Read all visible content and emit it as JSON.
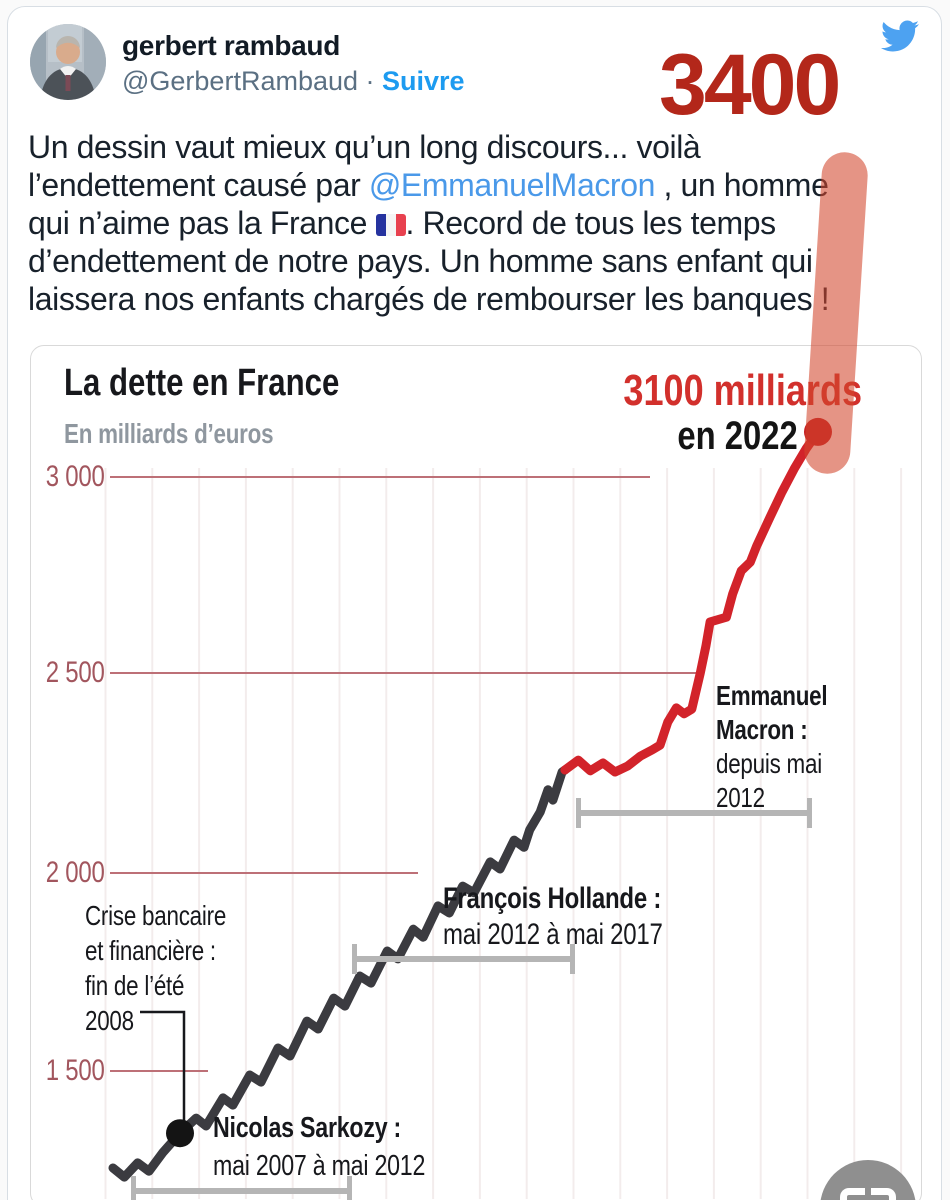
{
  "colors": {
    "overlay_red": "#b3271a",
    "link_blue": "#4a99e9",
    "follow_blue": "#1d9bf0",
    "curve_black": "#3b3b40",
    "curve_red": "#d2232a",
    "axis_red": "#bd7077",
    "bird_blue": "#4da2f1",
    "highlighter": "rgba(210,70,45,0.58)"
  },
  "header": {
    "author": "gerbert rambaud",
    "handle": "@GerbertRambaud",
    "separator": " · ",
    "follow_label": "Suivre"
  },
  "overlay_number": "3400",
  "tweet": {
    "lines": [
      [
        {
          "t": "Un dessin vaut mieux qu’un long discours... voilà"
        }
      ],
      [
        {
          "t": "l’endettement causé par "
        },
        {
          "t": "@EmmanuelMacron",
          "c": "link"
        },
        {
          "t": " , un homme"
        }
      ],
      [
        {
          "t": "qui n’aime pas la France "
        },
        {
          "t": "🇫🇷",
          "c": "flag"
        },
        {
          "t": ". Record de tous les temps"
        }
      ],
      [
        {
          "t": "d’endettement de notre pays. Un homme sans enfant qui"
        }
      ],
      [
        {
          "t": "laissera nos enfants chargés de rembourser les banques !"
        }
      ]
    ]
  },
  "chart": {
    "title": "La dette en France",
    "subtitle": "En milliards d’euros",
    "callout_value": "3100 milliards",
    "callout_year": "en 2022",
    "y_ticks": [
      "3 000",
      "2 500",
      "2 000",
      "1 500"
    ],
    "annotations": {
      "crisis_1": "Crise bancaire",
      "crisis_2": "et financière :",
      "crisis_3": "fin de l’été",
      "crisis_4": "2008",
      "sarkozy_name": "Nicolas Sarkozy :",
      "sarkozy_period": "mai 2007 à mai 2012",
      "hollande_name": "François Hollande :",
      "hollande_period": "mai 2012 à mai 2017",
      "macron_name_1": "Emmanuel",
      "macron_name_2": "Macron :",
      "macron_period_1": "depuis mai",
      "macron_period_2": "2012"
    }
  },
  "chart_data": {
    "type": "line",
    "title": "La dette en France",
    "ylabel": "En milliards d’euros",
    "ylim": [
      1150,
      3200
    ],
    "yticks": [
      3000,
      2500,
      2000,
      1500
    ],
    "x_axis": "temps, mai 2007 → 2022 (fraction t de 0 à 1)",
    "grid": "faint vertical lines",
    "series": [
      {
        "name": "dette avant l’ère rouge (tracé gris-noir)",
        "color": "#3b3b40",
        "points": [
          [
            0.0,
            1255
          ],
          [
            0.016,
            1232
          ],
          [
            0.035,
            1268
          ],
          [
            0.051,
            1247
          ],
          [
            0.071,
            1295
          ],
          [
            0.095,
            1343
          ],
          [
            0.118,
            1381
          ],
          [
            0.132,
            1361
          ],
          [
            0.156,
            1432
          ],
          [
            0.17,
            1414
          ],
          [
            0.194,
            1490
          ],
          [
            0.21,
            1472
          ],
          [
            0.234,
            1558
          ],
          [
            0.251,
            1538
          ],
          [
            0.275,
            1626
          ],
          [
            0.291,
            1606
          ],
          [
            0.313,
            1684
          ],
          [
            0.329,
            1664
          ],
          [
            0.35,
            1740
          ],
          [
            0.366,
            1722
          ],
          [
            0.389,
            1803
          ],
          [
            0.404,
            1783
          ],
          [
            0.426,
            1858
          ],
          [
            0.44,
            1838
          ],
          [
            0.461,
            1917
          ],
          [
            0.477,
            1899
          ],
          [
            0.496,
            1967
          ],
          [
            0.512,
            1950
          ],
          [
            0.535,
            2028
          ],
          [
            0.549,
            2010
          ],
          [
            0.569,
            2083
          ],
          [
            0.583,
            2065
          ],
          [
            0.591,
            2109
          ],
          [
            0.606,
            2154
          ],
          [
            0.617,
            2210
          ],
          [
            0.624,
            2184
          ],
          [
            0.637,
            2255
          ],
          [
            0.641,
            2260
          ]
        ]
      },
      {
        "name": "dette ère rouge « depuis mai 2012 » jusqu’à 3100 milliards en 2022",
        "color": "#d2232a",
        "points": [
          [
            0.641,
            2260
          ],
          [
            0.66,
            2285
          ],
          [
            0.677,
            2258
          ],
          [
            0.695,
            2278
          ],
          [
            0.712,
            2255
          ],
          [
            0.73,
            2270
          ],
          [
            0.748,
            2295
          ],
          [
            0.765,
            2311
          ],
          [
            0.776,
            2323
          ],
          [
            0.787,
            2381
          ],
          [
            0.799,
            2417
          ],
          [
            0.81,
            2402
          ],
          [
            0.821,
            2414
          ],
          [
            0.833,
            2505
          ],
          [
            0.841,
            2573
          ],
          [
            0.847,
            2634
          ],
          [
            0.87,
            2646
          ],
          [
            0.879,
            2705
          ],
          [
            0.891,
            2763
          ],
          [
            0.904,
            2785
          ],
          [
            0.913,
            2826
          ],
          [
            0.932,
            2899
          ],
          [
            0.949,
            2962
          ],
          [
            0.967,
            3023
          ],
          [
            0.983,
            3071
          ],
          [
            1.0,
            3114
          ]
        ]
      }
    ],
    "markers": [
      {
        "label": "Crise bancaire et financière : fin de l’été 2008",
        "t": 0.095,
        "value": 1343,
        "color": "#141414"
      },
      {
        "label": "3100 milliards en 2022",
        "t": 1.0,
        "value": 3114,
        "color": "#c41e22"
      }
    ]
  }
}
